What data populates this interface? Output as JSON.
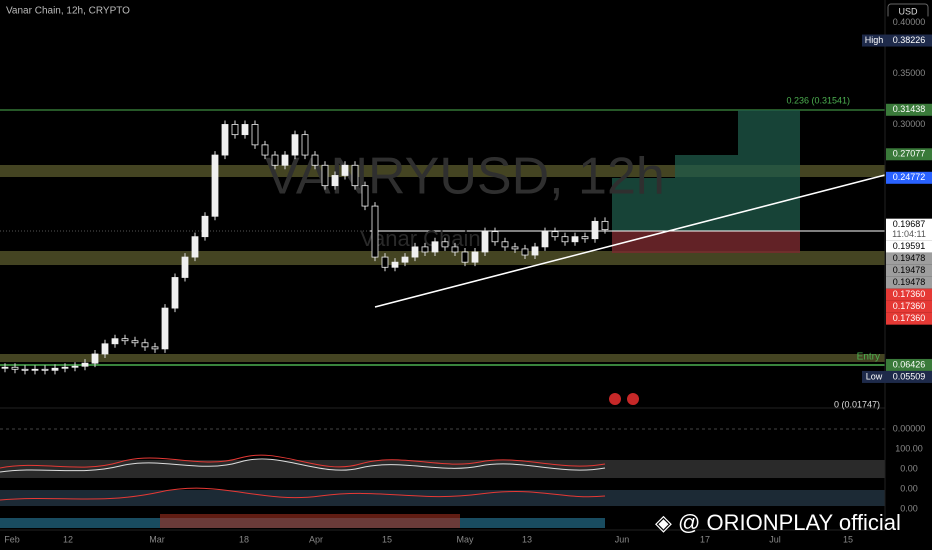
{
  "chart_data": {
    "type": "candlestick",
    "header": "Vanar Chain, 12h, CRYPTO",
    "watermark": "VANRYUSD, 12h",
    "watermark_sub": "Vanar Chain",
    "currency": "USD",
    "values": [
      0.062,
      0.06,
      0.059,
      0.06,
      0.059,
      0.061,
      0.062,
      0.063,
      0.066,
      0.075,
      0.085,
      0.09,
      0.088,
      0.086,
      0.082,
      0.08,
      0.12,
      0.15,
      0.17,
      0.19,
      0.21,
      0.27,
      0.3,
      0.29,
      0.3,
      0.28,
      0.27,
      0.26,
      0.27,
      0.29,
      0.27,
      0.26,
      0.24,
      0.25,
      0.26,
      0.24,
      0.22,
      0.17,
      0.16,
      0.165,
      0.17,
      0.18,
      0.175,
      0.185,
      0.18,
      0.175,
      0.165,
      0.175,
      0.195,
      0.185,
      0.18,
      0.178,
      0.172,
      0.18,
      0.195,
      0.19,
      0.185,
      0.19,
      0.188,
      0.205,
      0.19687
    ],
    "ylim": [
      0.025,
      0.422
    ],
    "price_labels": [
      {
        "value": 0.4,
        "label": "0.40000",
        "color": "#000000"
      },
      {
        "value": 0.38226,
        "label": "0.38226",
        "tag": "High",
        "color": "#1e2a4a"
      },
      {
        "value": 0.35,
        "label": "0.35000",
        "color": "#000000"
      },
      {
        "value": 0.31438,
        "label": "0.31438",
        "color": "#3a7a3a"
      },
      {
        "value": 0.3,
        "label": "0.30000",
        "color": "#000000"
      },
      {
        "value": 0.27077,
        "label": "0.27077",
        "color": "#3a7a3a"
      },
      {
        "value": 0.24772,
        "label": "0.24772",
        "color": "#2962ff"
      },
      {
        "value": 0.19687,
        "label": "0.19687",
        "sub": "11:04:11",
        "color": "#ffffff"
      },
      {
        "value": 0.19591,
        "label": "0.19591",
        "color": "#ffffff"
      },
      {
        "value": 0.19478,
        "label": "0.19478",
        "color": "#9e9e9e"
      },
      {
        "value": 0.19478,
        "label": "0.19478",
        "color": "#9e9e9e"
      },
      {
        "value": 0.19478,
        "label": "0.19478",
        "color": "#9e9e9e"
      },
      {
        "value": 0.1736,
        "label": "0.17360",
        "color": "#e53935"
      },
      {
        "value": 0.1736,
        "label": "0.17360",
        "color": "#e53935"
      },
      {
        "value": 0.1736,
        "label": "0.17360",
        "color": "#e53935"
      },
      {
        "value": 0.06426,
        "label": "0.06426",
        "color": "#3a7a3a"
      },
      {
        "value": 0.05509,
        "label": "0.05509",
        "tag": "Low",
        "color": "#1e2a4a"
      }
    ],
    "indicator_labels": [
      "0.00000",
      "100.00",
      "0.00",
      "0.00",
      "0.00"
    ],
    "time_labels": [
      "Feb",
      "12",
      "Mar",
      "18",
      "Apr",
      "15",
      "May",
      "13",
      "Jun",
      "17",
      "Jul",
      "15"
    ],
    "fib_label": "0.236 (0.31541)",
    "entry_label": "Entry",
    "indicator_value": "0 (0.01747)",
    "footer": "ORIONPLAY official"
  }
}
